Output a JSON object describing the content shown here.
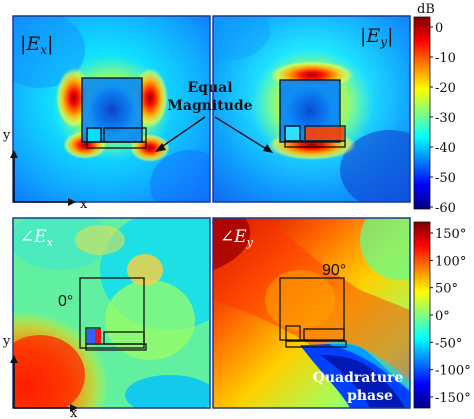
{
  "panels": {
    "ex_mag": {
      "label_text": "|Ex|",
      "label_main": "E",
      "label_sub": "x"
    },
    "ey_mag": {
      "label_text": "|Ey|",
      "label_main": "E",
      "label_sub": "y"
    },
    "ex_phase": {
      "label_text": "∠Ex",
      "label_main": "∠E",
      "label_sub": "x",
      "angle_text": "0°"
    },
    "ey_phase": {
      "label_text": "∠Ey",
      "label_main": "∠E",
      "label_sub": "y",
      "angle_text": "90°"
    }
  },
  "annotations": {
    "equal_magnitude_line1": "Equal",
    "equal_magnitude_line2": "Magnitude",
    "quadrature_line1": "Quadrature",
    "quadrature_line2": "phase"
  },
  "axes": {
    "y_label": "y",
    "x_label": "x"
  },
  "colorbar_mag": {
    "unit": "dB",
    "ticks": [
      "0",
      "-10",
      "-20",
      "-30",
      "-40",
      "-50",
      "-60"
    ]
  },
  "colorbar_phase": {
    "ticks": [
      "150°",
      "100°",
      "50°",
      "0°",
      "-50°",
      "-100°",
      "-150°"
    ]
  },
  "colors": {
    "jet_dark_red": "#7f0000",
    "jet_red": "#ff0000",
    "jet_orange": "#ff8000",
    "jet_yellow": "#ffff00",
    "jet_green": "#80ff80",
    "jet_cyan": "#00ffff",
    "jet_blue": "#0000ff",
    "jet_dark_blue": "#00007f",
    "panel_border": "#1a3a8a",
    "antenna_outline": "#111111"
  }
}
